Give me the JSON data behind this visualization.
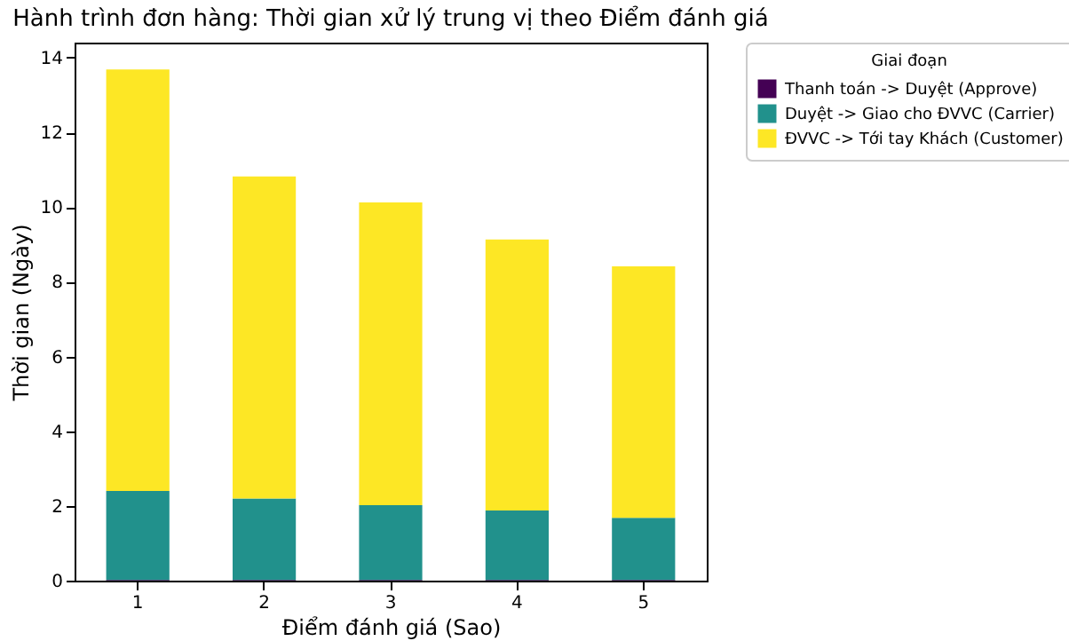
{
  "chart_data": {
    "type": "bar",
    "title": "Hành trình đơn hàng: Thời gian xử lý trung vị theo Điểm đánh giá",
    "xlabel": "Điểm đánh giá (Sao)",
    "ylabel": "Thời gian (Ngày)",
    "legend_title": "Giai đoạn",
    "categories": [
      "1",
      "2",
      "3",
      "4",
      "5"
    ],
    "stacked": true,
    "series": [
      {
        "name": "Thanh toán -> Duyệt (Approve)",
        "color": "#440154",
        "values": [
          0.02,
          0.02,
          0.02,
          0.02,
          0.02
        ]
      },
      {
        "name": "Duyệt -> Giao cho ĐVVC (Carrier)",
        "color": "#21918c",
        "values": [
          2.38,
          2.18,
          2.0,
          1.86,
          1.66
        ]
      },
      {
        "name": "ĐVVC -> Tới tay Khách (Customer)",
        "color": "#fde725",
        "values": [
          11.28,
          8.62,
          8.1,
          7.25,
          6.73
        ]
      }
    ],
    "ylim": [
      0,
      14.4
    ],
    "yticks": [
      0,
      2,
      4,
      6,
      8,
      10,
      12,
      14
    ],
    "grid": false,
    "legend": "top right"
  }
}
